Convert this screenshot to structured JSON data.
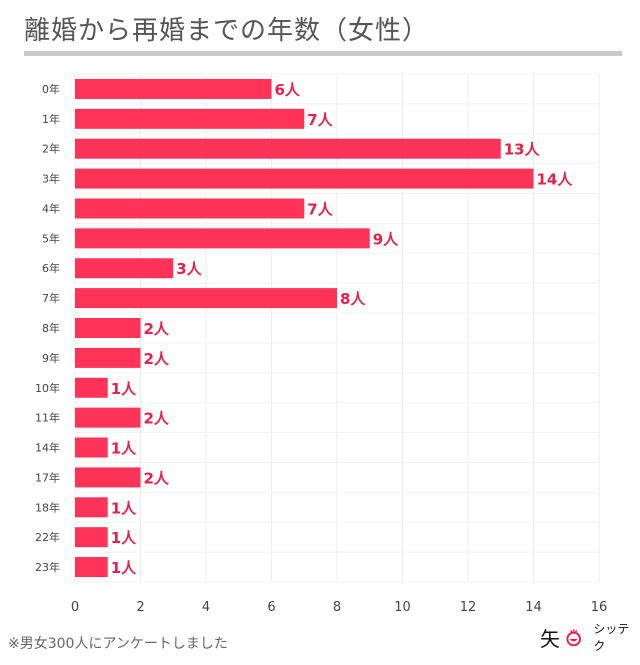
{
  "title": "離婚から再婚までの年数（女性）",
  "footnote": "※男女300人にアンケートしました",
  "logo": {
    "mark": "矢",
    "text": "シッテク"
  },
  "chart_data": {
    "type": "bar",
    "orientation": "horizontal",
    "title": "離婚から再婚までの年数（女性）",
    "categories": [
      "0年",
      "1年",
      "2年",
      "3年",
      "4年",
      "5年",
      "6年",
      "7年",
      "8年",
      "9年",
      "10年",
      "11年",
      "14年",
      "17年",
      "18年",
      "22年",
      "23年"
    ],
    "values": [
      6,
      7,
      13,
      14,
      7,
      9,
      3,
      8,
      2,
      2,
      1,
      2,
      1,
      2,
      1,
      1,
      1
    ],
    "data_labels": [
      "6人",
      "7人",
      "13人",
      "14人",
      "7人",
      "9人",
      "3人",
      "8人",
      "2人",
      "2人",
      "1人",
      "2人",
      "1人",
      "2人",
      "1人",
      "1人",
      "1人"
    ],
    "xlim": [
      0,
      16
    ],
    "xticks": [
      "0",
      "2",
      "4",
      "6",
      "8",
      "10",
      "12",
      "14",
      "16"
    ],
    "grid": true,
    "bar_color": "#ff3358",
    "label_color": "#e8204a"
  }
}
